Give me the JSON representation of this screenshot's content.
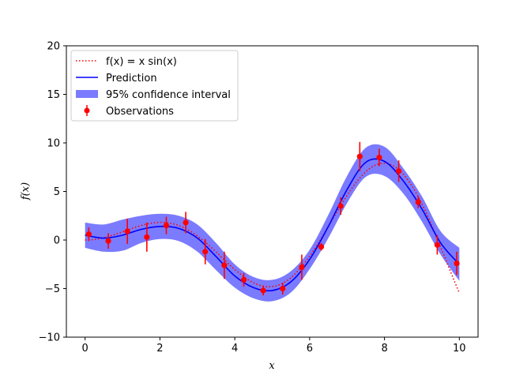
{
  "chart_data": {
    "type": "line",
    "title": "",
    "xlabel": "x",
    "ylabel": "f(x)",
    "xlim": [
      -0.5,
      10.5
    ],
    "ylim": [
      -10,
      20
    ],
    "xticks": [
      0,
      2,
      4,
      6,
      8,
      10
    ],
    "yticks": [
      -10,
      -5,
      0,
      5,
      10,
      15,
      20
    ],
    "grid": false,
    "legend_position": "top-left",
    "series": [
      {
        "name": "f(x) = x sin(x)",
        "style": "dotted",
        "color": "#ff0000",
        "function": "x*sin(x)",
        "x_range": [
          0,
          10
        ]
      },
      {
        "name": "Prediction",
        "style": "solid",
        "color": "#0000ff",
        "x": [
          0,
          0.5,
          1.0,
          1.5,
          2.0,
          2.5,
          3.0,
          3.5,
          4.0,
          4.5,
          5.0,
          5.5,
          6.0,
          6.5,
          7.0,
          7.5,
          8.0,
          8.5,
          9.0,
          9.5,
          10.0
        ],
        "y": [
          0.5,
          0.2,
          0.5,
          1.1,
          1.4,
          1.2,
          0.2,
          -1.7,
          -3.7,
          -4.9,
          -5.2,
          -4.3,
          -2.0,
          1.4,
          5.2,
          8.0,
          8.1,
          6.1,
          3.2,
          -0.3,
          -2.5
        ]
      },
      {
        "name": "95% confidence interval",
        "style": "band",
        "color": "#7b7bff",
        "x": [
          0,
          0.5,
          1.0,
          1.5,
          2.0,
          2.5,
          3.0,
          3.5,
          4.0,
          4.5,
          5.0,
          5.5,
          6.0,
          6.5,
          7.0,
          7.5,
          8.0,
          8.5,
          9.0,
          9.5,
          10.0
        ],
        "lower": [
          -0.8,
          -1.2,
          -1.1,
          -0.3,
          0.1,
          -0.1,
          -1.2,
          -3.1,
          -4.9,
          -6.0,
          -6.3,
          -5.4,
          -3.0,
          0.2,
          3.8,
          6.5,
          6.6,
          4.8,
          1.9,
          -1.5,
          -4.2
        ],
        "upper": [
          1.8,
          1.6,
          2.1,
          2.5,
          2.7,
          2.5,
          1.6,
          -0.3,
          -2.5,
          -3.8,
          -4.1,
          -3.2,
          -1.0,
          2.6,
          6.6,
          9.5,
          9.6,
          7.4,
          4.5,
          0.9,
          -0.8
        ]
      },
      {
        "name": "Observations",
        "style": "errorbar",
        "color": "#ff0000",
        "x": [
          0.1,
          0.62,
          1.13,
          1.65,
          2.17,
          2.69,
          3.21,
          3.72,
          4.24,
          4.76,
          5.28,
          5.79,
          6.31,
          6.83,
          7.34,
          7.86,
          8.38,
          8.9,
          9.41,
          9.93
        ],
        "y": [
          0.6,
          -0.1,
          0.9,
          0.3,
          1.5,
          1.8,
          -1.2,
          -2.6,
          -4.1,
          -5.2,
          -5.0,
          -2.8,
          -0.7,
          3.5,
          8.6,
          8.5,
          7.1,
          3.9,
          -0.5,
          -2.4
        ],
        "err": [
          0.7,
          0.8,
          1.3,
          1.5,
          0.9,
          1.1,
          1.3,
          1.4,
          0.7,
          0.5,
          0.6,
          1.3,
          0.4,
          0.9,
          1.5,
          0.9,
          1.1,
          0.6,
          1.0,
          1.2
        ]
      }
    ]
  },
  "legend": {
    "items": [
      {
        "label_main": "f(x) = x sin(x)"
      },
      {
        "label": "Prediction"
      },
      {
        "label": "95% confidence interval"
      },
      {
        "label": "Observations"
      }
    ]
  }
}
